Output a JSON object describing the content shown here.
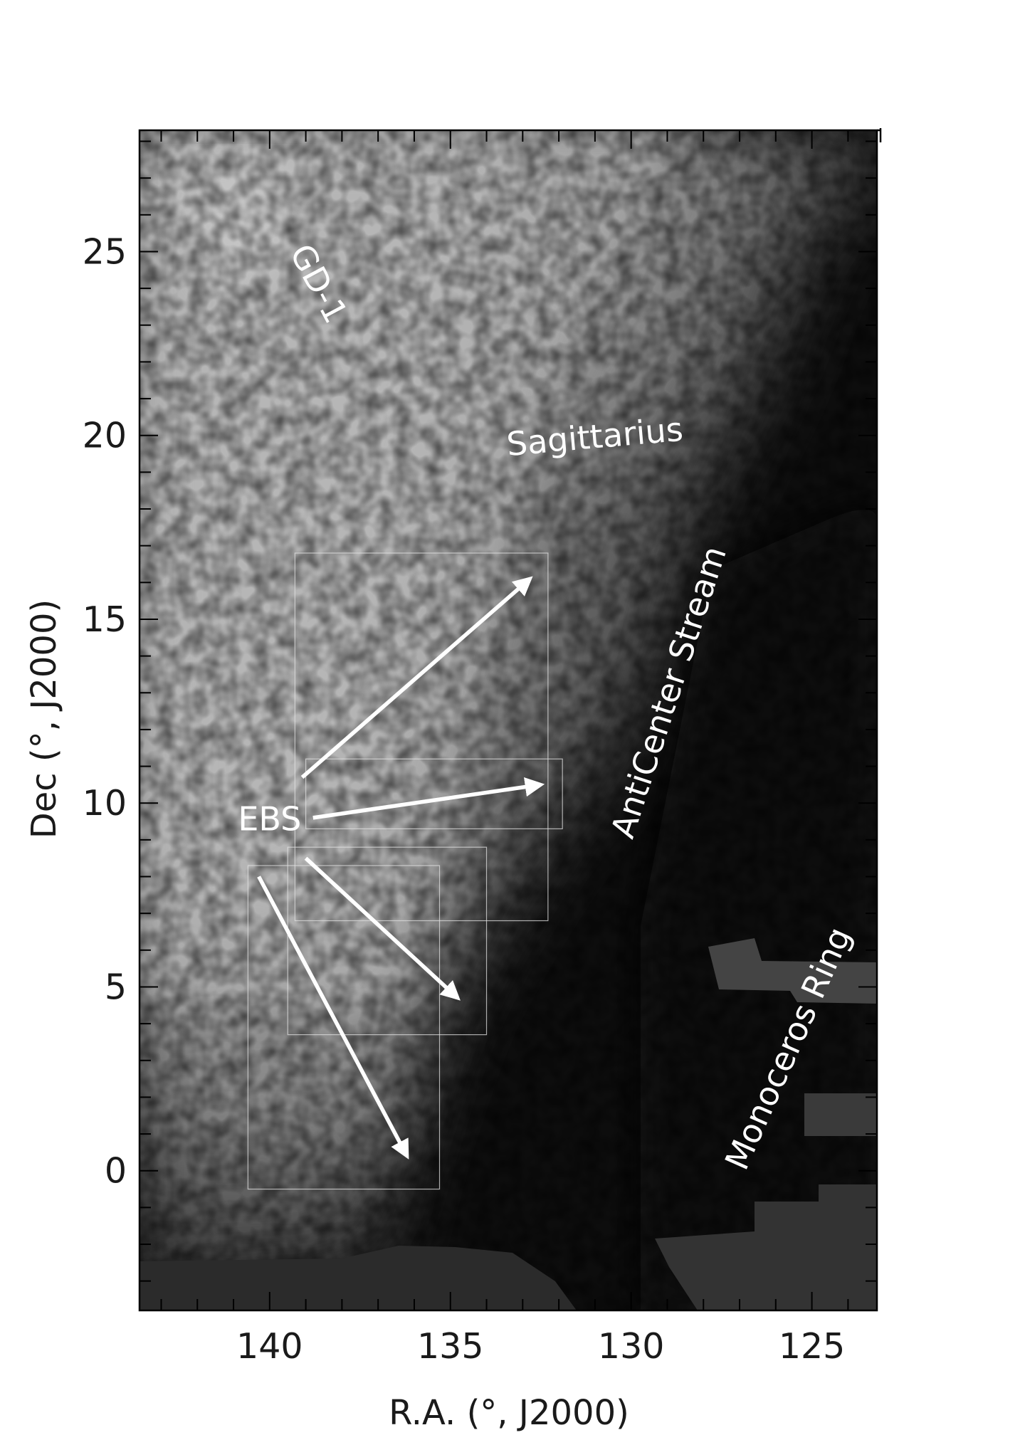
{
  "chart_data": {
    "type": "heatmap",
    "title": "",
    "xlabel": "R.A. (°, J2000)",
    "ylabel": "Dec (°, J2000)",
    "xlim": [
      143.6,
      123.2
    ],
    "ylim": [
      -3.8,
      28.3
    ],
    "x_inverted": true,
    "x_ticks": [
      140,
      135,
      130,
      125
    ],
    "x_tick_labels": [
      "140",
      "135",
      "130",
      "125"
    ],
    "y_ticks": [
      0,
      5,
      10,
      15,
      20,
      25
    ],
    "y_tick_labels": [
      "0",
      "5",
      "10",
      "15",
      "20",
      "25"
    ],
    "x_minor_step": 1,
    "y_minor_step": 1,
    "colormap": "grayscale",
    "grid": false,
    "annotations": [
      {
        "text": "GD-1",
        "x": 138.7,
        "y": 24.1,
        "rotate": 62
      },
      {
        "text": "Sagittarius",
        "x": 131.0,
        "y": 19.9,
        "rotate": -5
      },
      {
        "text": "AntiCenter Stream",
        "x": 128.9,
        "y": 13.0,
        "rotate": -72
      },
      {
        "text": "Monoceros Ring",
        "x": 125.6,
        "y": 3.3,
        "rotate": -66
      },
      {
        "text": "EBS",
        "x": 140.0,
        "y": 9.5,
        "rotate": 0
      }
    ],
    "boxes": [
      {
        "ra": [
          139.3,
          132.3
        ],
        "dec": [
          6.8,
          16.8
        ]
      },
      {
        "ra": [
          139.0,
          131.9
        ],
        "dec": [
          9.3,
          11.2
        ]
      },
      {
        "ra": [
          139.5,
          134.0
        ],
        "dec": [
          3.7,
          8.8
        ]
      },
      {
        "ra": [
          140.6,
          135.3
        ],
        "dec": [
          -0.5,
          8.3
        ]
      }
    ],
    "arrows": [
      {
        "from": [
          139.1,
          10.7
        ],
        "to": [
          132.8,
          16.1
        ]
      },
      {
        "from": [
          138.8,
          9.6
        ],
        "to": [
          132.5,
          10.5
        ]
      },
      {
        "from": [
          139.0,
          8.5
        ],
        "to": [
          134.8,
          4.7
        ]
      },
      {
        "from": [
          140.3,
          8.0
        ],
        "to": [
          136.2,
          0.4
        ]
      }
    ]
  }
}
